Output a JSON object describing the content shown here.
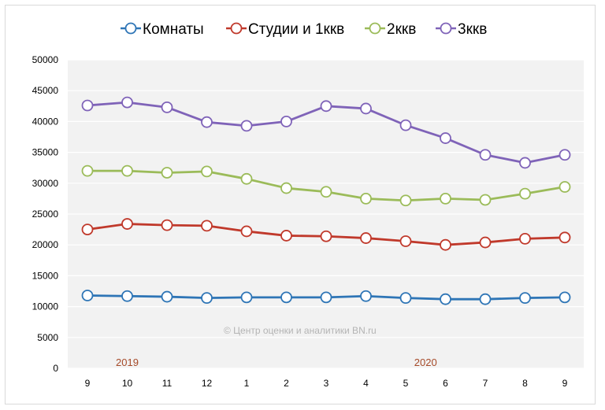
{
  "chart_data": {
    "type": "line",
    "title": "",
    "xlabel": "",
    "ylabel": "",
    "categories": [
      "9",
      "10",
      "11",
      "12",
      "1",
      "2",
      "3",
      "4",
      "5",
      "6",
      "7",
      "8",
      "9"
    ],
    "year_labels": [
      {
        "text": "2019",
        "at_category_index": 1
      },
      {
        "text": "2020",
        "at_category_index": 8.5
      }
    ],
    "ylim": [
      0,
      50000
    ],
    "yticks": [
      "0",
      "5000",
      "10000",
      "15000",
      "20000",
      "25000",
      "30000",
      "35000",
      "40000",
      "45000",
      "50000"
    ],
    "grid": true,
    "legend_position": "top",
    "watermark": "© Центр оценки и аналитики BN.ru",
    "series": [
      {
        "name": "Комнаты",
        "color": "#2e75b6",
        "values": [
          11800,
          11700,
          11600,
          11400,
          11500,
          11500,
          11500,
          11700,
          11400,
          11200,
          11200,
          11400,
          11500
        ]
      },
      {
        "name": "Студии и 1ккв",
        "color": "#c0392b",
        "values": [
          22500,
          23400,
          23200,
          23100,
          22200,
          21500,
          21400,
          21100,
          20600,
          20000,
          20400,
          21000,
          21200
        ]
      },
      {
        "name": "2ккв",
        "color": "#9bbb59",
        "values": [
          32000,
          32000,
          31700,
          31900,
          30700,
          29200,
          28600,
          27500,
          27200,
          27500,
          27300,
          28300,
          29400
        ]
      },
      {
        "name": "3ккв",
        "color": "#7f63b8",
        "values": [
          42600,
          43100,
          42300,
          39900,
          39300,
          40000,
          42500,
          42100,
          39400,
          37300,
          34600,
          33300,
          34600
        ]
      }
    ]
  }
}
